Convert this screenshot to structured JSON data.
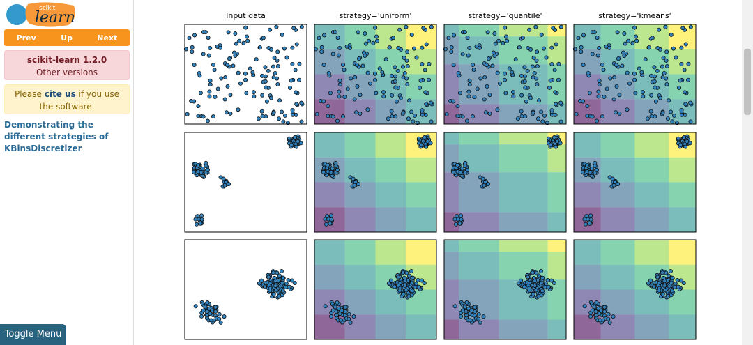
{
  "logo": {
    "small": "scikit",
    "large": "learn"
  },
  "nav": [
    "Prev",
    "Up",
    "Next"
  ],
  "version": {
    "title": "scikit-learn 1.2.0",
    "link": "Other versions"
  },
  "cite": {
    "before": "Please",
    "link": "cite us",
    "after": "if you use the software."
  },
  "toc_title": "Demonstrating the different strategies of KBinsDiscretizer",
  "figure": {
    "column_titles": [
      "Input data",
      "strategy='uniform'",
      "strategy='quantile'",
      "strategy='kmeans'"
    ]
  },
  "toggle_menu": "Toggle Menu"
}
